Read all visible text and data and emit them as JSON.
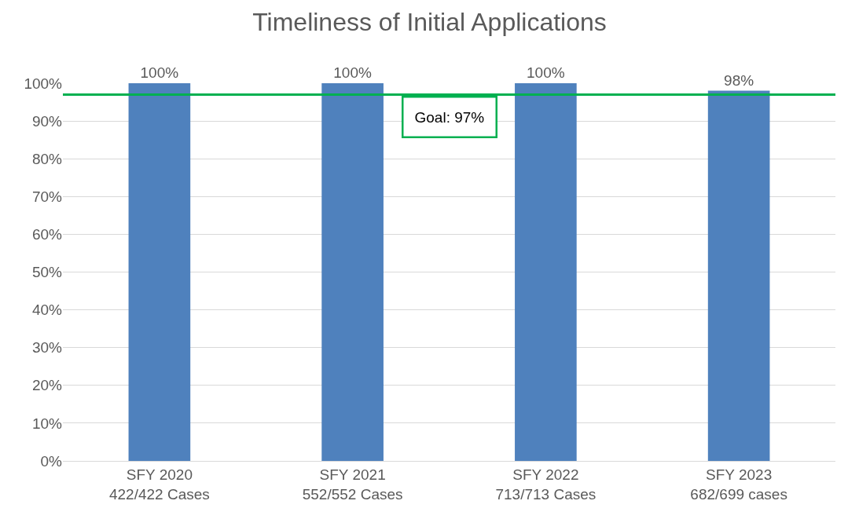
{
  "chart_data": {
    "type": "bar",
    "title": "Timeliness of Initial Applications",
    "categories": [
      "SFY 2020\n422/422 Cases",
      "SFY 2021\n552/552 Cases",
      "SFY 2022\n713/713 Cases",
      "SFY 2023\n682/699 cases"
    ],
    "values": [
      100,
      100,
      100,
      98
    ],
    "value_labels": [
      "100%",
      "100%",
      "100%",
      "98%"
    ],
    "color": "#4f81bd",
    "ylim": [
      0,
      100
    ],
    "yticks": [
      {
        "value": 0,
        "label": "0%"
      },
      {
        "value": 10,
        "label": "10%"
      },
      {
        "value": 20,
        "label": "20%"
      },
      {
        "value": 30,
        "label": "30%"
      },
      {
        "value": 40,
        "label": "40%"
      },
      {
        "value": 50,
        "label": "50%"
      },
      {
        "value": 60,
        "label": "60%"
      },
      {
        "value": 70,
        "label": "70%"
      },
      {
        "value": 80,
        "label": "80%"
      },
      {
        "value": 90,
        "label": "90%"
      },
      {
        "value": 100,
        "label": "100%"
      }
    ],
    "ref_lines": [
      {
        "axis": "y",
        "value": 97,
        "label": "Goal: 97%",
        "color": "#00b050"
      }
    ],
    "grid": "y"
  }
}
